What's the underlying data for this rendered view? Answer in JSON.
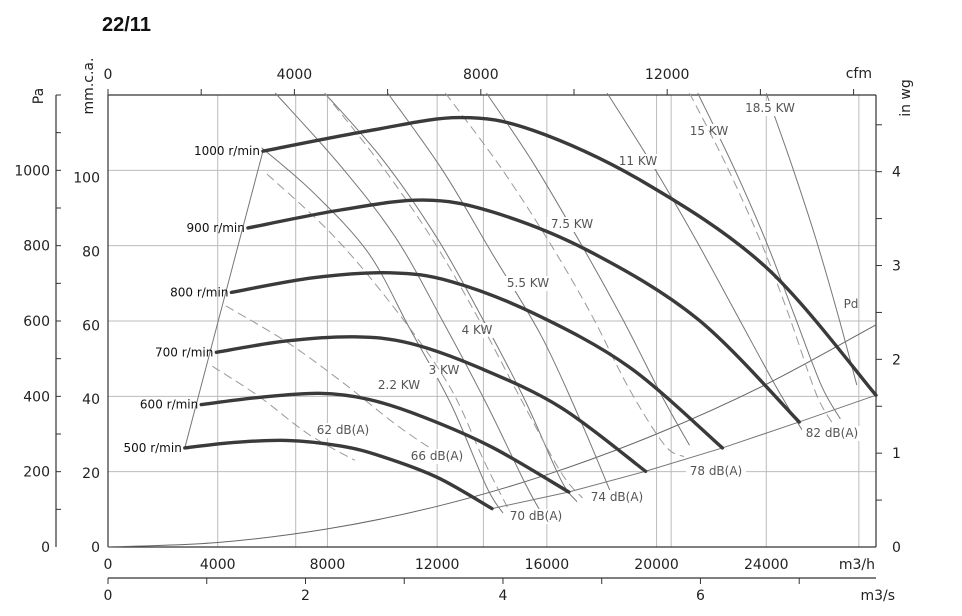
{
  "chart_data": {
    "type": "line",
    "title": "22/11",
    "units": {
      "top": "cfm",
      "bottom": "m3/h",
      "bottom2": "m3/s",
      "left_outer": "Pa",
      "left_inner": "mm.c.a.",
      "right": "in wg"
    },
    "axes": {
      "x_m3h": {
        "range": [
          0,
          28000
        ],
        "ticks": [
          0,
          4000,
          8000,
          12000,
          16000,
          20000,
          24000
        ]
      },
      "x_cfm": {
        "ticks": [
          0,
          4000,
          8000,
          12000
        ]
      },
      "x_m3s": {
        "ticks": [
          0,
          2,
          4,
          6
        ]
      },
      "y_pa": {
        "range": [
          0,
          1200
        ],
        "ticks": [
          0,
          200,
          400,
          600,
          800,
          1000
        ]
      },
      "y_mmca": {
        "ticks": [
          0,
          20,
          40,
          60,
          80,
          100
        ]
      },
      "y_inwg": {
        "ticks": [
          0,
          1,
          2,
          3,
          4
        ]
      }
    },
    "series": [
      {
        "name": "500 r/min",
        "points": [
          [
            2800,
            263
          ],
          [
            4500,
            277
          ],
          [
            6500,
            283
          ],
          [
            8500,
            268
          ],
          [
            10000,
            240
          ],
          [
            12000,
            185
          ],
          [
            14000,
            102
          ]
        ]
      },
      {
        "name": "600 r/min",
        "points": [
          [
            3400,
            378
          ],
          [
            5500,
            397
          ],
          [
            7700,
            408
          ],
          [
            9500,
            392
          ],
          [
            11500,
            345
          ],
          [
            14000,
            265
          ],
          [
            16800,
            146
          ]
        ]
      },
      {
        "name": "700 r/min",
        "points": [
          [
            3950,
            517
          ],
          [
            6500,
            547
          ],
          [
            9000,
            558
          ],
          [
            11000,
            541
          ],
          [
            13500,
            477
          ],
          [
            16500,
            371
          ],
          [
            19600,
            201
          ]
        ]
      },
      {
        "name": "800 r/min",
        "points": [
          [
            4500,
            676
          ],
          [
            7500,
            715
          ],
          [
            10300,
            728
          ],
          [
            12500,
            705
          ],
          [
            15500,
            621
          ],
          [
            19000,
            478
          ],
          [
            22400,
            263
          ]
        ]
      },
      {
        "name": "900 r/min",
        "points": [
          [
            5100,
            847
          ],
          [
            8500,
            895
          ],
          [
            11500,
            921
          ],
          [
            14000,
            890
          ],
          [
            17500,
            787
          ],
          [
            21500,
            605
          ],
          [
            25200,
            332
          ]
        ]
      },
      {
        "name": "1000 r/min",
        "points": [
          [
            5650,
            1051
          ],
          [
            9500,
            1105
          ],
          [
            12800,
            1140
          ],
          [
            15500,
            1106
          ],
          [
            19500,
            970
          ],
          [
            24000,
            742
          ],
          [
            28000,
            403
          ]
        ]
      }
    ],
    "power_lines": [
      {
        "label": "2.2 KW",
        "points": [
          [
            5600,
            1060
          ],
          [
            7500,
            940
          ],
          [
            9500,
            780
          ],
          [
            11000,
            580
          ],
          [
            12500,
            380
          ],
          [
            13800,
            160
          ],
          [
            14400,
            90
          ]
        ]
      },
      {
        "label": "3 KW",
        "points": [
          [
            6100,
            1205
          ],
          [
            8500,
            1010
          ],
          [
            10500,
            820
          ],
          [
            12200,
            600
          ],
          [
            13800,
            380
          ],
          [
            15200,
            170
          ],
          [
            15800,
            90
          ]
        ]
      },
      {
        "label": "4 KW",
        "points": [
          [
            7900,
            1205
          ],
          [
            10000,
            1030
          ],
          [
            12000,
            820
          ],
          [
            13700,
            600
          ],
          [
            15200,
            390
          ],
          [
            16500,
            180
          ],
          [
            17100,
            120
          ]
        ]
      },
      {
        "label": "5.5 KW",
        "points": [
          [
            10200,
            1205
          ],
          [
            12200,
            1000
          ],
          [
            14000,
            780
          ],
          [
            15800,
            560
          ],
          [
            17200,
            340
          ],
          [
            18300,
            150
          ]
        ]
      },
      {
        "label": "7.5 KW",
        "points": [
          [
            13800,
            1205
          ],
          [
            15500,
            1020
          ],
          [
            17200,
            810
          ],
          [
            18800,
            600
          ],
          [
            20200,
            400
          ],
          [
            21200,
            270
          ]
        ]
      },
      {
        "label": "11 KW",
        "points": [
          [
            18200,
            1205
          ],
          [
            19800,
            1020
          ],
          [
            21400,
            820
          ],
          [
            22900,
            620
          ],
          [
            24400,
            420
          ],
          [
            25400,
            300
          ]
        ]
      },
      {
        "label": "15 KW",
        "points": [
          [
            21500,
            1205
          ],
          [
            22800,
            1010
          ],
          [
            24000,
            810
          ],
          [
            25000,
            620
          ],
          [
            26000,
            430
          ],
          [
            26700,
            340
          ]
        ]
      },
      {
        "label": "18.5 KW",
        "points": [
          [
            24000,
            1205
          ],
          [
            24900,
            1020
          ],
          [
            25800,
            820
          ],
          [
            26600,
            620
          ],
          [
            27300,
            430
          ]
        ]
      }
    ],
    "noise_lines": [
      {
        "label": "62 dB(A)",
        "points": [
          [
            3800,
            480
          ],
          [
            5500,
            400
          ],
          [
            7300,
            300
          ],
          [
            9000,
            230
          ]
        ]
      },
      {
        "label": "66 dB(A)",
        "points": [
          [
            4300,
            640
          ],
          [
            6500,
            545
          ],
          [
            8500,
            440
          ],
          [
            10500,
            325
          ],
          [
            11900,
            255
          ]
        ]
      },
      {
        "label": "70 dB(A)",
        "points": [
          [
            5800,
            990
          ],
          [
            8300,
            820
          ],
          [
            10700,
            610
          ],
          [
            12500,
            420
          ],
          [
            13700,
            230
          ],
          [
            14600,
            100
          ]
        ]
      },
      {
        "label": "74 dB(A)",
        "points": [
          [
            7900,
            1205
          ],
          [
            9900,
            1020
          ],
          [
            11800,
            820
          ],
          [
            13400,
            620
          ],
          [
            15000,
            400
          ],
          [
            16500,
            200
          ],
          [
            17300,
            130
          ]
        ]
      },
      {
        "label": "78 dB(A)",
        "points": [
          [
            12300,
            1205
          ],
          [
            14200,
            1020
          ],
          [
            16000,
            820
          ],
          [
            17600,
            620
          ],
          [
            19000,
            420
          ],
          [
            20300,
            270
          ],
          [
            21000,
            240
          ]
        ]
      },
      {
        "label": "82 dB(A)",
        "points": [
          [
            21200,
            1205
          ],
          [
            22500,
            1020
          ],
          [
            23800,
            810
          ],
          [
            24800,
            620
          ],
          [
            25800,
            410
          ],
          [
            26400,
            330
          ]
        ]
      }
    ],
    "pd_curve": {
      "label": "Pd",
      "points": [
        [
          0,
          0
        ],
        [
          4000,
          12
        ],
        [
          8000,
          48
        ],
        [
          12000,
          108
        ],
        [
          16000,
          192
        ],
        [
          20000,
          300
        ],
        [
          24000,
          432
        ],
        [
          28000,
          590
        ]
      ]
    },
    "limits": {
      "left": [
        [
          2800,
          263
        ],
        [
          5650,
          1051
        ]
      ],
      "right": [
        [
          14000,
          102
        ],
        [
          16800,
          146
        ],
        [
          19600,
          201
        ],
        [
          22400,
          263
        ],
        [
          25200,
          332
        ],
        [
          28000,
          403
        ]
      ]
    }
  }
}
